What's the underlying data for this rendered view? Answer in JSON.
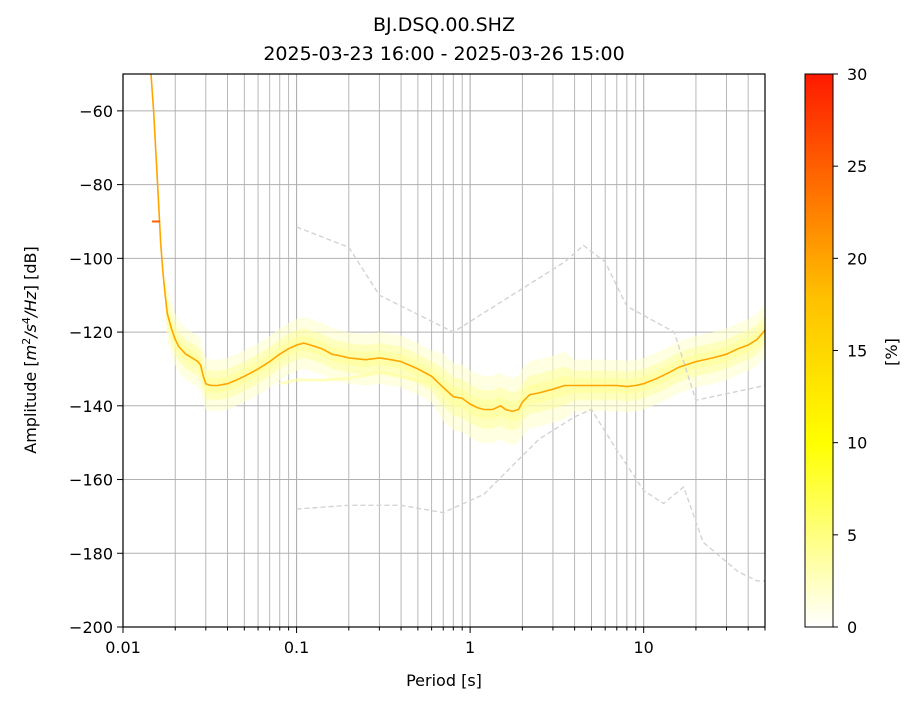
{
  "chart_data": {
    "type": "line",
    "title": "BJ.DSQ.00.SHZ",
    "subtitle": "2025-03-23 16:00 - 2025-03-26 15:00",
    "xlabel": "Period [s]",
    "ylabel_prefix": "Amplitude [",
    "ylabel_unit_m": "m",
    "ylabel_exp_2": "2",
    "ylabel_slash_s": "/s",
    "ylabel_exp_4": "4",
    "ylabel_slash_hz": "/Hz",
    "ylabel_suffix": "] [dB]",
    "x_scale": "log",
    "xlim": [
      0.01,
      50
    ],
    "ylim": [
      -200,
      -50
    ],
    "x_ticks": [
      {
        "value": 0.01,
        "label": "0.01"
      },
      {
        "value": 0.1,
        "label": "0.1"
      },
      {
        "value": 1,
        "label": "1"
      },
      {
        "value": 10,
        "label": "10"
      }
    ],
    "y_ticks": [
      {
        "value": -60,
        "label": "−60"
      },
      {
        "value": -80,
        "label": "−80"
      },
      {
        "value": -100,
        "label": "−100"
      },
      {
        "value": -120,
        "label": "−120"
      },
      {
        "value": -140,
        "label": "−140"
      },
      {
        "value": -160,
        "label": "−160"
      },
      {
        "value": -180,
        "label": "−180"
      },
      {
        "value": -200,
        "label": "−200"
      }
    ],
    "grid": true,
    "colorbar": {
      "label": "[%]",
      "range": [
        0,
        30
      ],
      "ticks": [
        {
          "value": 0,
          "label": "0"
        },
        {
          "value": 5,
          "label": "5"
        },
        {
          "value": 10,
          "label": "10"
        },
        {
          "value": 15,
          "label": "15"
        },
        {
          "value": 20,
          "label": "20"
        },
        {
          "value": 25,
          "label": "25"
        },
        {
          "value": 30,
          "label": "30"
        }
      ],
      "colors": [
        "#ffffff",
        "#ffff00",
        "#ffa500",
        "#ff1a00"
      ]
    },
    "colors": {
      "mode_line": "#ffa500",
      "noise_models": "#d3d3d3",
      "grid": "#b0b0b0",
      "density_low": "#ffffc8",
      "density_mid": "#ffff99",
      "high_spot": "#ff6000"
    },
    "series": [
      {
        "id": "mode",
        "x": [
          0.0145,
          0.015,
          0.0155,
          0.016,
          0.0165,
          0.017,
          0.0175,
          0.018,
          0.019,
          0.02,
          0.021,
          0.022,
          0.023,
          0.024,
          0.025,
          0.026,
          0.027,
          0.028,
          0.029,
          0.03,
          0.032,
          0.035,
          0.04,
          0.045,
          0.05,
          0.055,
          0.06,
          0.065,
          0.07,
          0.08,
          0.09,
          0.1,
          0.11,
          0.12,
          0.14,
          0.16,
          0.18,
          0.2,
          0.25,
          0.3,
          0.35,
          0.4,
          0.5,
          0.6,
          0.7,
          0.8,
          0.9,
          1.0,
          1.1,
          1.2,
          1.35,
          1.5,
          1.6,
          1.75,
          1.9,
          2.0,
          2.2,
          2.5,
          3,
          3.5,
          4,
          5,
          6,
          7,
          8,
          9,
          10,
          12,
          14,
          16,
          20,
          25,
          30,
          35,
          40,
          45,
          50
        ],
        "y": [
          -50,
          -60,
          -72,
          -84,
          -96,
          -104,
          -110,
          -115,
          -119,
          -122,
          -124,
          -125,
          -126,
          -126.5,
          -127,
          -127.5,
          -128,
          -129,
          -132,
          -134,
          -134.5,
          -134.5,
          -134,
          -133,
          -132,
          -131,
          -130,
          -129,
          -128,
          -126,
          -124.5,
          -123.5,
          -123,
          -123.5,
          -124.5,
          -126,
          -126.5,
          -127,
          -127.5,
          -127,
          -127.5,
          -128,
          -130,
          -132,
          -135,
          -137.5,
          -138,
          -139.5,
          -140.5,
          -141,
          -141,
          -140,
          -141,
          -141.5,
          -141,
          -139,
          -137,
          -136.5,
          -135.5,
          -134.5,
          -134.5,
          -134.5,
          -134.5,
          -134.5,
          -134.8,
          -134.5,
          -134,
          -132.5,
          -131,
          -129.5,
          -128,
          -127,
          -126,
          -124.5,
          -123.5,
          -122,
          -119.5
        ]
      },
      {
        "id": "nhnm",
        "x": [
          0.1,
          0.2,
          0.3,
          0.8,
          3.5,
          4.5,
          6,
          8,
          15,
          20,
          50
        ],
        "y": [
          -91.5,
          -97,
          -110,
          -120,
          -101,
          -96.5,
          -101,
          -113,
          -120,
          -138.5,
          -134.5
        ]
      },
      {
        "id": "nlnm",
        "x": [
          0.1,
          0.2,
          0.4,
          0.7,
          1.2,
          2.5,
          4,
          5,
          7,
          10,
          13,
          17,
          22,
          35,
          45,
          50
        ],
        "y": [
          -168,
          -167,
          -167,
          -169,
          -164,
          -149,
          -143,
          -141,
          -152,
          -163,
          -166.5,
          -162,
          -177,
          -185,
          -187.5,
          -187.5
        ]
      }
    ]
  }
}
